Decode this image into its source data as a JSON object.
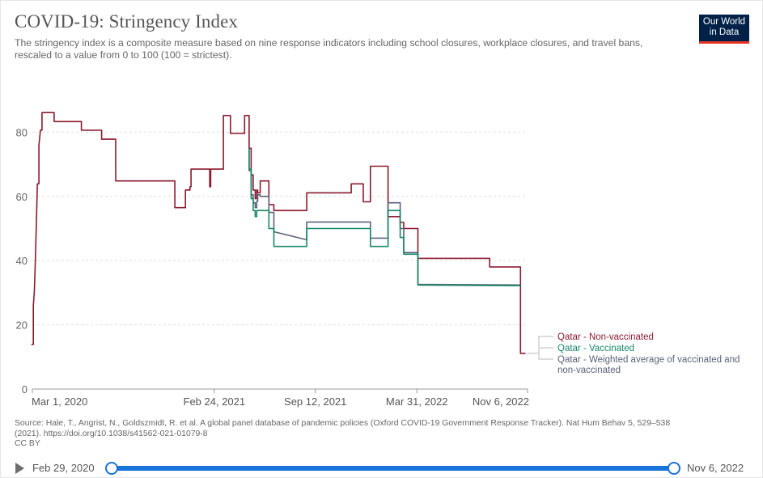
{
  "header": {
    "title": "COVID-19: Stringency Index",
    "subtitle": "The stringency index is a composite measure based on nine response indicators including school closures, workplace closures, and travel bans, rescaled to a value from 0 to 100 (100 = strictest)."
  },
  "logo": {
    "line1": "Our World",
    "line2": "in Data"
  },
  "source": {
    "line1": "Source: Hale, T., Angrist, N., Goldszmidt, R. et al. A global panel database of pandemic policies (Oxford COVID-19 Government Response Tracker). Nat Hum Behav 5, 529–538",
    "line2": "(2021). https://doi.org/10.1038/s41562-021-01079-8",
    "license": "CC BY"
  },
  "timeline": {
    "start_label": "Feb 29, 2020",
    "end_label": "Nov 6, 2022"
  },
  "colors": {
    "nonvaccinated": "#8b1a2e",
    "vaccinated": "#16886a",
    "weighted": "#5a6278",
    "grid": "#dddddd",
    "accent": "#1a73d9"
  },
  "chart_data": {
    "type": "line",
    "title": "COVID-19: Stringency Index",
    "xlabel": "",
    "ylabel": "",
    "ylim": [
      0,
      100
    ],
    "yticks": [
      0,
      20,
      40,
      60,
      80
    ],
    "xlim": [
      0,
      980
    ],
    "x_unit": "days since Mar 1, 2020",
    "xticks": [
      {
        "x": 0,
        "label": "Mar 1, 2020"
      },
      {
        "x": 360,
        "label": "Feb 24, 2021"
      },
      {
        "x": 560,
        "label": "Sep 12, 2021"
      },
      {
        "x": 761,
        "label": "Mar 31, 2022"
      },
      {
        "x": 980,
        "label": "Nov 6, 2022"
      }
    ],
    "series": [
      {
        "name": "Qatar - Non-vaccinated",
        "legend": "Qatar - Non-vaccinated",
        "color": "#8b1a2e",
        "points": [
          [
            -2,
            13.9
          ],
          [
            2,
            13.9
          ],
          [
            2,
            26
          ],
          [
            4,
            30.6
          ],
          [
            6,
            40
          ],
          [
            8,
            52
          ],
          [
            10,
            63.9
          ],
          [
            13,
            63.9
          ],
          [
            13,
            76
          ],
          [
            16,
            80.6
          ],
          [
            19,
            80.6
          ],
          [
            19,
            86.1
          ],
          [
            43,
            86.1
          ],
          [
            43,
            83.3
          ],
          [
            97,
            83.3
          ],
          [
            97,
            80.6
          ],
          [
            137,
            80.6
          ],
          [
            137,
            77.8
          ],
          [
            165,
            77.8
          ],
          [
            165,
            64.8
          ],
          [
            282,
            64.8
          ],
          [
            282,
            56.5
          ],
          [
            303,
            56.5
          ],
          [
            303,
            62
          ],
          [
            312,
            62
          ],
          [
            312,
            63
          ],
          [
            314,
            63
          ],
          [
            314,
            68.5
          ],
          [
            351,
            68.5
          ],
          [
            351,
            63
          ],
          [
            353,
            63
          ],
          [
            353,
            68.5
          ],
          [
            378,
            68.5
          ],
          [
            378,
            85.2
          ],
          [
            392,
            85.2
          ],
          [
            392,
            79.6
          ],
          [
            420,
            79.6
          ],
          [
            420,
            85.2
          ],
          [
            429,
            85.2
          ],
          [
            429,
            75
          ],
          [
            433,
            75
          ],
          [
            433,
            66.7
          ],
          [
            437,
            66.7
          ],
          [
            437,
            62
          ],
          [
            441,
            62
          ],
          [
            441,
            59.3
          ],
          [
            444,
            59.3
          ],
          [
            444,
            62
          ],
          [
            446,
            62
          ],
          [
            446,
            61.1
          ],
          [
            451,
            61.1
          ],
          [
            451,
            64.8
          ],
          [
            468,
            64.8
          ],
          [
            468,
            57.4
          ],
          [
            478,
            57.4
          ],
          [
            478,
            55.6
          ],
          [
            543,
            55.6
          ],
          [
            543,
            61.1
          ],
          [
            631,
            61.1
          ],
          [
            631,
            63.9
          ],
          [
            655,
            63.9
          ],
          [
            655,
            58.3
          ],
          [
            669,
            58.3
          ],
          [
            669,
            69.4
          ],
          [
            704,
            69.4
          ],
          [
            704,
            53.7
          ],
          [
            711,
            53.7
          ],
          [
            711,
            53.7
          ],
          [
            728,
            53.7
          ],
          [
            728,
            51.9
          ],
          [
            735,
            51.9
          ],
          [
            735,
            50
          ],
          [
            763,
            50
          ],
          [
            763,
            40.7
          ],
          [
            905,
            40.7
          ],
          [
            905,
            38
          ],
          [
            966,
            38
          ],
          [
            966,
            11.1
          ],
          [
            976,
            11.1
          ]
        ]
      },
      {
        "name": "Qatar - Vaccinated",
        "legend": "Qatar - Vaccinated",
        "color": "#16886a",
        "points": [
          [
            429,
            75
          ],
          [
            429,
            68.5
          ],
          [
            433,
            68.5
          ],
          [
            433,
            59.3
          ],
          [
            437,
            59.3
          ],
          [
            437,
            55.6
          ],
          [
            441,
            55.6
          ],
          [
            441,
            53.7
          ],
          [
            444,
            53.7
          ],
          [
            444,
            55.6
          ],
          [
            451,
            55.6
          ],
          [
            451,
            55.6
          ],
          [
            468,
            55.6
          ],
          [
            468,
            50
          ],
          [
            478,
            50
          ],
          [
            478,
            44.4
          ],
          [
            543,
            44.4
          ],
          [
            543,
            50
          ],
          [
            669,
            50
          ],
          [
            669,
            44.4
          ],
          [
            704,
            44.4
          ],
          [
            704,
            55.6
          ],
          [
            728,
            55.6
          ],
          [
            728,
            47.2
          ],
          [
            735,
            47.2
          ],
          [
            735,
            42
          ],
          [
            763,
            42
          ],
          [
            763,
            32.4
          ],
          [
            966,
            32.2
          ]
        ]
      },
      {
        "name": "Qatar - Weighted average of vaccinated and non-vaccinated",
        "legend_line1": "Qatar - Weighted average of vaccinated and",
        "legend_line2": "non-vaccinated",
        "color": "#5a6278",
        "points": [
          [
            429,
            75
          ],
          [
            429,
            68
          ],
          [
            433,
            68
          ],
          [
            433,
            60.5
          ],
          [
            437,
            60.5
          ],
          [
            437,
            58
          ],
          [
            441,
            58
          ],
          [
            441,
            56.5
          ],
          [
            444,
            56.5
          ],
          [
            444,
            58.5
          ],
          [
            446,
            58.5
          ],
          [
            446,
            60.5
          ],
          [
            451,
            60.5
          ],
          [
            451,
            60
          ],
          [
            468,
            60
          ],
          [
            468,
            55
          ],
          [
            478,
            55
          ],
          [
            478,
            49
          ],
          [
            540,
            46.6
          ],
          [
            543,
            46.6
          ],
          [
            543,
            52
          ],
          [
            669,
            52
          ],
          [
            669,
            47
          ],
          [
            704,
            47
          ],
          [
            704,
            58
          ],
          [
            728,
            58
          ],
          [
            728,
            50
          ],
          [
            735,
            50
          ],
          [
            735,
            42.5
          ],
          [
            763,
            42.5
          ],
          [
            763,
            32.6
          ],
          [
            966,
            32.4
          ]
        ]
      }
    ]
  }
}
